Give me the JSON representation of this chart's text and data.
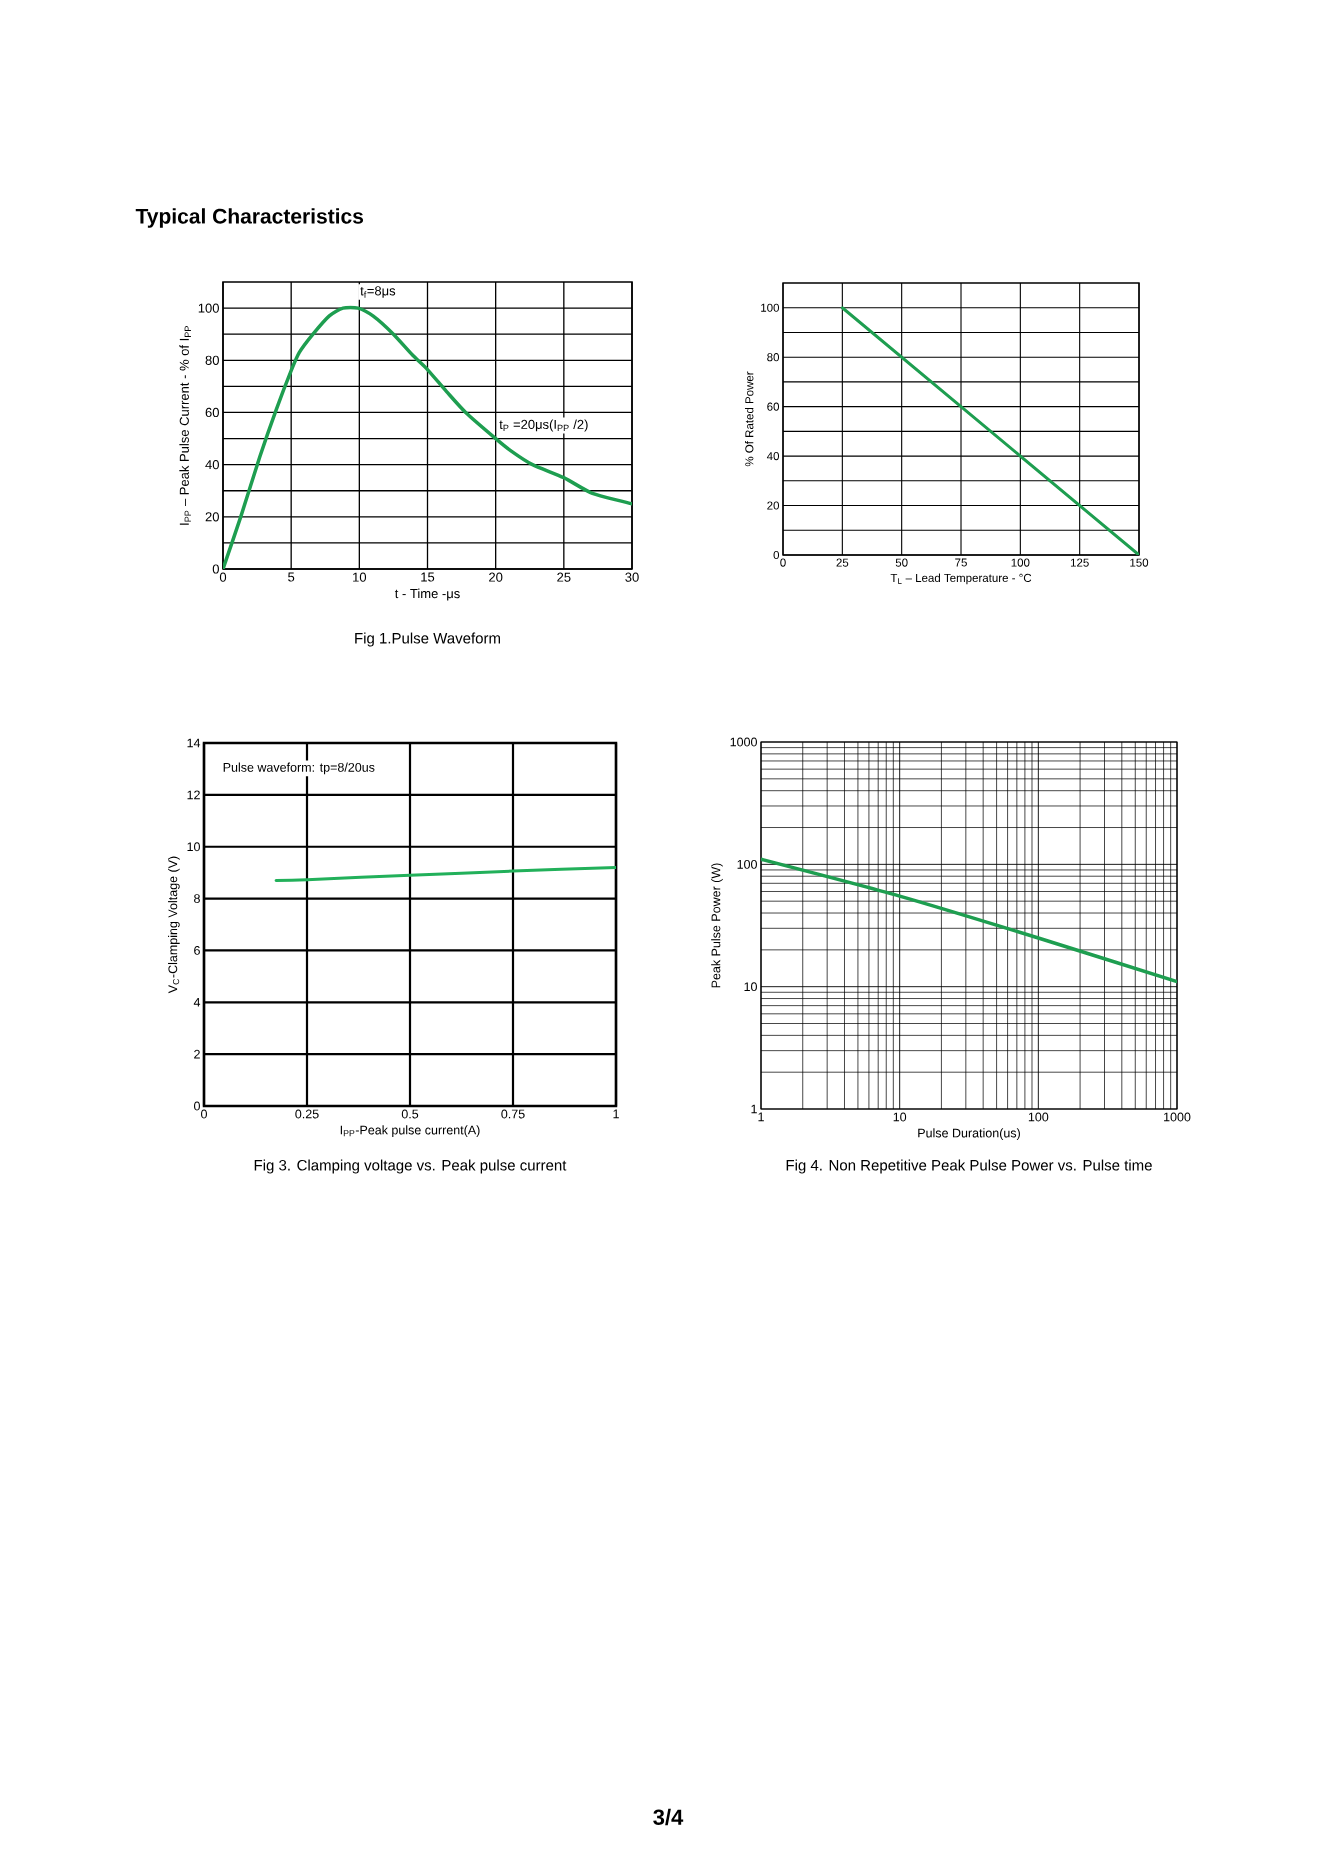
{
  "chart_data": [
    {
      "type": "other",
      "title": "Typical  Characteristics",
      "annotations": [
        "3/4"
      ]
    },
    {
      "type": "line",
      "title": "Fig 1.Pulse Waveform",
      "xlabel": "t - Time -μs",
      "ylabel": "I$_{PP}$ – Peak Pulse Current - % of  I$_{PP}$",
      "color": "#1e9e50",
      "x": [
        0,
        1.3,
        2.7,
        3.9,
        5,
        5.6,
        6.6,
        7.8,
        8.8,
        9.9,
        11,
        12.5,
        13.9,
        14.9,
        16.4,
        17.8,
        20,
        21.2,
        22.7,
        25,
        27.1,
        30
      ],
      "values": [
        0,
        20,
        43,
        61,
        76,
        83,
        90,
        97,
        100,
        100,
        97,
        90,
        82,
        77,
        68,
        60,
        50,
        45,
        40,
        35,
        29,
        25
      ],
      "xlim": [
        0,
        30
      ],
      "ylim": [
        0,
        110
      ],
      "xticks": [
        0,
        5,
        10,
        15,
        20,
        25,
        30
      ],
      "yticks": [
        0,
        {
          "value": 10,
          "label": null
        },
        20,
        {
          "value": 30,
          "label": null
        },
        40,
        {
          "value": 50,
          "label": null
        },
        60,
        {
          "value": 70,
          "label": null
        },
        80,
        {
          "value": 90,
          "label": null
        },
        100
      ],
      "grid": true,
      "annotations": [
        "t$_{f}$=8μs",
        "t$_{P}$ =20μs(I$_{PP}$ /2)"
      ]
    },
    {
      "type": "line",
      "xlabel": "T$_{L}$ – Lead Temperature - °C",
      "ylabel": "% Of Rated Power",
      "color": "#1e9e50",
      "x": [
        25,
        150
      ],
      "values": [
        100,
        0
      ],
      "xlim": [
        0,
        150
      ],
      "ylim": [
        0,
        110
      ],
      "xticks": [
        0,
        25,
        50,
        75,
        100,
        125,
        150
      ],
      "yticks": [
        0,
        {
          "value": 10,
          "label": null
        },
        20,
        {
          "value": 30,
          "label": null
        },
        40,
        {
          "value": 50,
          "label": null
        },
        60,
        {
          "value": 70,
          "label": null
        },
        80,
        {
          "value": 90,
          "label": null
        },
        100
      ],
      "grid": true
    },
    {
      "type": "line",
      "title": "Fig 3. Clamping voltage vs. Peak pulse current",
      "xlabel": "I$_{PP}$-Peak pulse current(A)",
      "ylabel": "V$_{C}$-Clamping Voltage (V)",
      "color": "#22b05a",
      "x": [
        0.175,
        0.25,
        0.5,
        0.75,
        1
      ],
      "values": [
        8.7,
        8.73,
        8.9,
        9.06,
        9.2
      ],
      "xlim": [
        0,
        1
      ],
      "ylim": [
        0,
        14
      ],
      "xticks": [
        0,
        0.25,
        0.5,
        0.75,
        1
      ],
      "yticks": [
        0,
        2,
        4,
        6,
        8,
        10,
        12,
        14
      ],
      "grid": true,
      "annotations": [
        "Pulse waveform: tp=8/20us"
      ]
    },
    {
      "type": "line",
      "title": "Fig 4. Non Repetitive Peak Pulse Power vs. Pulse time",
      "xlabel": "Pulse Duration(us)",
      "ylabel": "Peak Pulse Power (W)",
      "color": "#1e9e50",
      "x": [
        1,
        10,
        100,
        1000
      ],
      "values": [
        110,
        55,
        25,
        11
      ],
      "xlim": [
        1,
        1000
      ],
      "ylim": [
        1,
        1000
      ],
      "xticks": [
        1,
        10,
        100,
        1000
      ],
      "yticks": [
        1,
        10,
        100,
        1000
      ],
      "log": "xy",
      "grid": true
    }
  ]
}
